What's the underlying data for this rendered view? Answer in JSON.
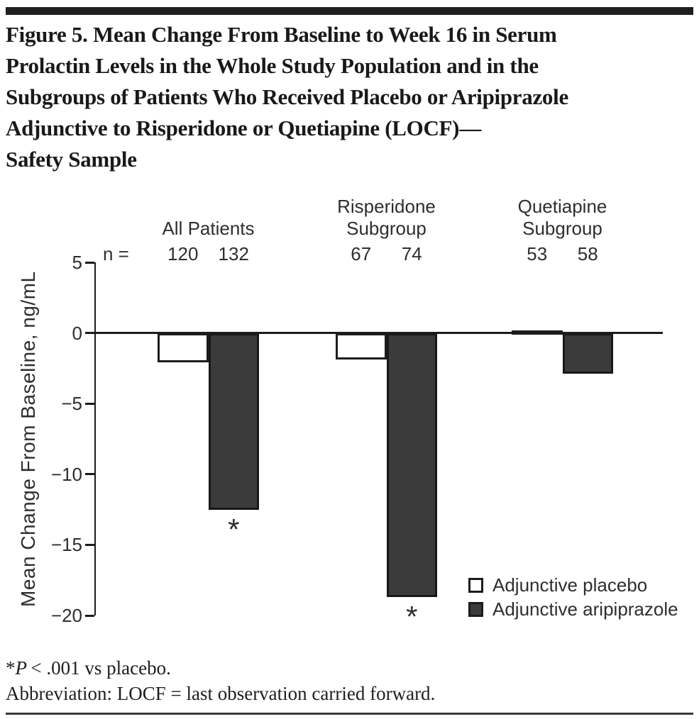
{
  "figure": {
    "title_lines": [
      "Figure 5. Mean Change From Baseline to Week 16 in Serum",
      "Prolactin Levels in the Whole Study Population and in the",
      "Subgroups of Patients Who Received Placebo or Aripiprazole",
      "Adjunctive to Risperidone or Quetiapine (LOCF)—",
      "Safety Sample"
    ],
    "footnotes": {
      "sig_marker": "*",
      "sig_p": "P",
      "sig_rest": "< .001 vs placebo.",
      "abbreviation": "Abbreviation: LOCF = last observation carried forward."
    }
  },
  "chart_data": {
    "type": "bar",
    "title": "",
    "xlabel": "",
    "ylabel": "Mean Change From Baseline, ng/mL",
    "ylim": [
      -20,
      5
    ],
    "yticks": [
      {
        "v": 5,
        "label": "5"
      },
      {
        "v": 0,
        "label": "0"
      },
      {
        "v": -5,
        "label": "−5"
      },
      {
        "v": -10,
        "label": "−10"
      },
      {
        "v": -15,
        "label": "−15"
      },
      {
        "v": -20,
        "label": "−20"
      }
    ],
    "grid": false,
    "legend_position": "inside-bottom-right",
    "n_label": "n =",
    "categories": [
      "All Patients",
      "Risperidone Subgroup",
      "Quetiapine Subgroup"
    ],
    "category_label_lines": [
      [
        "All Patients"
      ],
      [
        "Risperidone",
        "Subgroup"
      ],
      [
        "Quetiapine",
        "Subgroup"
      ]
    ],
    "n_values": [
      [
        120,
        132
      ],
      [
        67,
        74
      ],
      [
        53,
        58
      ]
    ],
    "series": [
      {
        "name": "Adjunctive placebo",
        "values": [
          -2.1,
          -1.9,
          0.2
        ],
        "fill": "#ffffff"
      },
      {
        "name": "Adjunctive aripiprazole",
        "values": [
          -12.5,
          -18.7,
          -2.9
        ],
        "fill": "#3b3b3b"
      }
    ],
    "significance": {
      "symbol": "*",
      "series": "Adjunctive aripiprazole",
      "flags": [
        true,
        true,
        false
      ],
      "note": "*P < .001 vs placebo."
    }
  }
}
